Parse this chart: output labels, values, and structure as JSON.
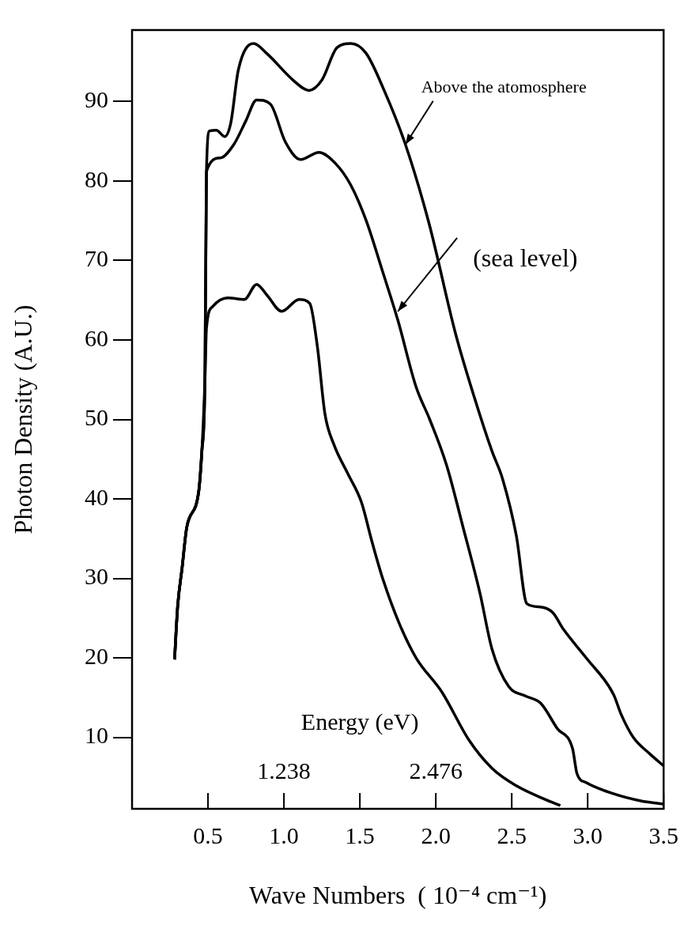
{
  "chart_data": {
    "type": "line",
    "xlabel": "Wave Numbers  ( 10⁻⁴ cm⁻¹)",
    "ylabel": "Photon Density (A.U.)",
    "x2label": "Energy (eV)",
    "xlim": [
      0,
      3.5
    ],
    "xticks": [
      0.5,
      {
        "value": 1,
        "label": "1.0"
      },
      1.5,
      {
        "value": 2,
        "label": "2.0"
      },
      2.5,
      {
        "value": 3,
        "label": "3.0"
      },
      3.5
    ],
    "ylim": [
      1,
      99
    ],
    "yticks": [
      10,
      20,
      30,
      40,
      50,
      60,
      70,
      80,
      90
    ],
    "x2lim": [
      0,
      4.333
    ],
    "x2ticks": [
      1.238,
      2.476
    ],
    "marker": "none",
    "series": [
      {
        "color": "#000000",
        "x": [
          0.28,
          0.3,
          0.33,
          0.36,
          0.44,
          0.46,
          0.48,
          0.49,
          0.51,
          0.555,
          0.61,
          0.65,
          0.7,
          0.8,
          0.89,
          1.06,
          1.165,
          1.25,
          1.35,
          1.44,
          1.54,
          1.66,
          1.8,
          1.955,
          2.13,
          2.26,
          2.37,
          2.44,
          2.53,
          2.6,
          2.69,
          2.77,
          2.84,
          2.99,
          3.17,
          3.22,
          3.3,
          3.41,
          3.5
        ],
        "values": [
          19.8,
          26.4,
          31.4,
          36.4,
          41.1,
          46.1,
          55,
          81.2,
          86.3,
          86.4,
          85.6,
          87.3,
          94,
          97.3,
          96,
          92.7,
          91.4,
          92.7,
          96.8,
          97.3,
          96.1,
          91.4,
          84.6,
          74.7,
          60.8,
          52.4,
          46,
          42.5,
          35.4,
          26.8,
          26.4,
          25.7,
          23.6,
          20,
          15.4,
          12.9,
          10,
          7.9,
          6.4
        ]
      },
      {
        "color": "#000000",
        "x": [
          0.28,
          0.3,
          0.33,
          0.36,
          0.44,
          0.46,
          0.48,
          0.49,
          0.58,
          0.67,
          0.75,
          0.82,
          0.91,
          1.01,
          1.11,
          1.23,
          1.34,
          1.44,
          1.54,
          1.65,
          1.75,
          1.87,
          1.96,
          2.07,
          2.18,
          2.29,
          2.37,
          2.48,
          2.59,
          2.69,
          2.8,
          2.9,
          2.93,
          2.99,
          3.17,
          3.35,
          3.5
        ],
        "values": [
          19.8,
          26.4,
          31.4,
          36.4,
          41.1,
          46.1,
          55,
          81.2,
          82.9,
          84.6,
          87.6,
          90.2,
          89.7,
          84.9,
          82.7,
          83.6,
          82.2,
          79.5,
          75.1,
          68.6,
          62.5,
          54.1,
          50,
          44.3,
          36.4,
          28.2,
          21.1,
          16.4,
          15.2,
          14.3,
          11.1,
          8.6,
          5.4,
          4.3,
          2.9,
          2,
          1.6
        ]
      },
      {
        "color": "#000000",
        "x": [
          0.28,
          0.3,
          0.33,
          0.36,
          0.44,
          0.46,
          0.48,
          0.49,
          0.53,
          0.63,
          0.74,
          0.82,
          0.89,
          0.985,
          1.1,
          1.17,
          1.22,
          1.27,
          1.33,
          1.42,
          1.51,
          1.58,
          1.65,
          1.76,
          1.87,
          2.04,
          2.22,
          2.37,
          2.53,
          2.73,
          2.82
        ],
        "values": [
          19.8,
          26.4,
          31.4,
          36.4,
          41.1,
          46.1,
          55,
          61.5,
          64.2,
          65.3,
          65.1,
          67,
          65.6,
          63.6,
          65.1,
          64.6,
          59.2,
          50.7,
          46.8,
          43.2,
          39.6,
          34.6,
          30,
          24.3,
          20,
          15.7,
          9.6,
          6.1,
          3.9,
          2.1,
          1.4
        ]
      }
    ],
    "annotations": [
      {
        "text": "Above the atomosphere",
        "x": 1.8,
        "y": 84.6
      },
      {
        "text": "(sea level)",
        "x": 1.75,
        "y": 63.6
      }
    ]
  }
}
